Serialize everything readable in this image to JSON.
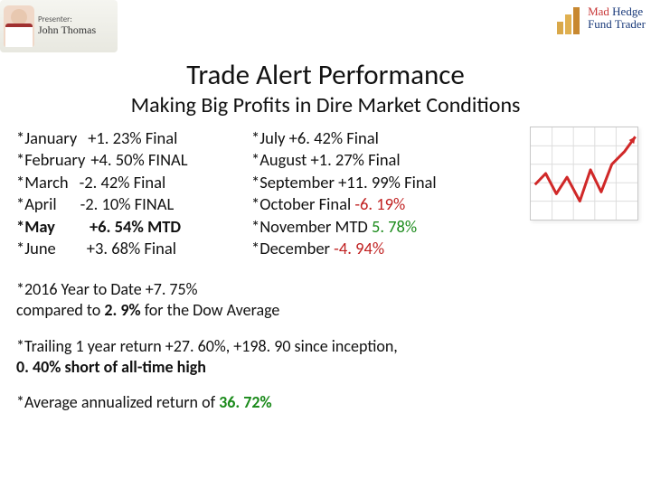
{
  "presenter": {
    "label": "Presenter:",
    "name": "John Thomas"
  },
  "brand": {
    "line1_accent": "Mad",
    "line1_rest": " Hedge",
    "line2": "Fund Trader"
  },
  "title": "Trade Alert Performance",
  "subtitle": "Making Big Profits in Dire Market Conditions",
  "colors": {
    "positive": "#1a8a1a",
    "negative": "#c02020",
    "text": "#111111",
    "brand_blue": "#1a3a7a",
    "brand_red": "#c83838"
  },
  "fontsize": {
    "title": 31,
    "subtitle": 24,
    "row": 18.5,
    "notes": 18
  },
  "months_left": [
    {
      "month": "*January",
      "value": "+1. 23% Final",
      "bold": false,
      "pad": 12
    },
    {
      "month": "*February",
      "value": "+4. 50% FINAL",
      "bold": false,
      "pad": 6
    },
    {
      "month": "*March",
      "value": "-2. 42% Final",
      "bold": false,
      "pad": 12
    },
    {
      "month": "*April",
      "value": "-2. 10% FINAL",
      "bold": false,
      "pad": 26
    },
    {
      "month": "*May",
      "value": "+6. 54% MTD",
      "bold": true,
      "pad": 38
    },
    {
      "month": "*June",
      "value": "+3. 68% Final",
      "bold": false,
      "pad": 34
    }
  ],
  "months_right": [
    {
      "text": "*July  +6. 42% Final",
      "bold": false,
      "color": null
    },
    {
      "text": "*August +1. 27% Final",
      "bold": false,
      "color": null
    },
    {
      "text": "*September +11. 99% Final",
      "bold": false,
      "color": null
    },
    {
      "text_pre": "*October Final ",
      "value": "-6. 19%",
      "bold": false,
      "color": "negative"
    },
    {
      "text_pre": "*November MTD ",
      "value": "5. 78%",
      "bold": false,
      "color": "positive"
    },
    {
      "text_pre": "*December ",
      "value": "-4. 94%",
      "bold": false,
      "color": "negative"
    }
  ],
  "notes": {
    "ytd_line1": "*2016 Year to Date +7. 75%",
    "ytd_line2_pre": "compared to ",
    "ytd_line2_val": "2. 9% ",
    "ytd_line2_post": "for the Dow Average",
    "trailing_line1": "*Trailing 1 year return +27. 60%, +198. 90 since inception,",
    "trailing_line2": "0. 40% short of all-time high",
    "avg_pre": "*Average annualized return of ",
    "avg_val": "36. 72%"
  },
  "chart": {
    "type": "line",
    "background_color": "#ffffff",
    "grid_color": "#dddddd",
    "line_color": "#d02828",
    "line_width": 3,
    "arrow": true,
    "xlim": [
      0,
      100
    ],
    "ylim": [
      0,
      100
    ],
    "grid_step": 20,
    "points": [
      [
        4,
        62
      ],
      [
        14,
        50
      ],
      [
        24,
        72
      ],
      [
        34,
        54
      ],
      [
        46,
        80
      ],
      [
        56,
        46
      ],
      [
        66,
        70
      ],
      [
        76,
        40
      ],
      [
        88,
        26
      ],
      [
        98,
        10
      ]
    ]
  }
}
